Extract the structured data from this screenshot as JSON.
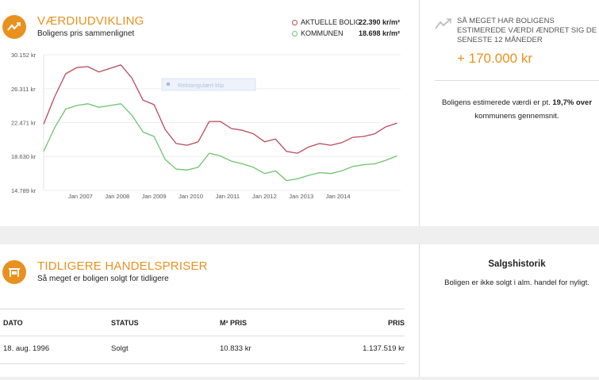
{
  "value_section": {
    "title": "VÆRDIUDVIKLING",
    "subtitle": "Boligens pris sammenlignet",
    "legend": [
      {
        "label": "AKTUELLE BOLIG",
        "value": "22.390 kr/m²",
        "color": "#b84a5a"
      },
      {
        "label": "KOMMUNEN",
        "value": "18.698 kr/m²",
        "color": "#6dc36d"
      }
    ]
  },
  "chart_data": {
    "type": "line",
    "y_tick_labels": [
      "30.152 kr",
      "26.311 kr",
      "22.471 kr",
      "18.630 kr",
      "14.789 kr"
    ],
    "y_ticks": [
      30152,
      26311,
      22471,
      18630,
      14789
    ],
    "x_tick_labels": [
      "Jan 2007",
      "Jan 2008",
      "Jan 2009",
      "Jan 2010",
      "Jan 2011",
      "Jan 2012",
      "Jan 2013",
      "Jan 2014"
    ],
    "x_ticks": [
      2007,
      2008,
      2009,
      2010,
      2011,
      2012,
      2013,
      2014
    ],
    "xlim": [
      2006.0,
      2015.7
    ],
    "ylim": [
      14789,
      30152
    ],
    "tooltip_label": "Rektangulært klip",
    "series": [
      {
        "name": "Aktuelle bolig",
        "color": "#b84a5a",
        "x": [
          2006.0,
          2006.3,
          2006.6,
          2006.9,
          2007.2,
          2007.5,
          2007.8,
          2008.1,
          2008.4,
          2008.7,
          2009.0,
          2009.3,
          2009.6,
          2009.9,
          2010.2,
          2010.5,
          2010.8,
          2011.1,
          2011.4,
          2011.7,
          2012.0,
          2012.3,
          2012.6,
          2012.9,
          2013.2,
          2013.5,
          2013.8,
          2014.1,
          2014.4,
          2014.7,
          2015.0,
          2015.3,
          2015.6
        ],
        "values": [
          22300,
          25400,
          28000,
          28700,
          28800,
          28200,
          28600,
          29000,
          27500,
          25000,
          24500,
          21700,
          20100,
          19900,
          20300,
          22600,
          22600,
          21800,
          21600,
          21200,
          20300,
          20600,
          19200,
          19000,
          19700,
          20100,
          19900,
          20200,
          20800,
          20900,
          21200,
          22000,
          22400
        ]
      },
      {
        "name": "Kommunen",
        "color": "#6dc36d",
        "x": [
          2006.0,
          2006.3,
          2006.6,
          2006.9,
          2007.2,
          2007.5,
          2007.8,
          2008.1,
          2008.4,
          2008.7,
          2009.0,
          2009.3,
          2009.6,
          2009.9,
          2010.2,
          2010.5,
          2010.8,
          2011.1,
          2011.4,
          2011.7,
          2012.0,
          2012.3,
          2012.6,
          2012.9,
          2013.2,
          2013.5,
          2013.8,
          2014.1,
          2014.4,
          2014.7,
          2015.0,
          2015.3,
          2015.6
        ],
        "values": [
          19200,
          21900,
          24000,
          24400,
          24600,
          24200,
          24400,
          24600,
          23300,
          21400,
          20900,
          18300,
          17200,
          17100,
          17400,
          19000,
          18700,
          18100,
          17800,
          17400,
          16700,
          17000,
          15900,
          16100,
          16500,
          16800,
          16700,
          17000,
          17500,
          17700,
          17800,
          18200,
          18700
        ]
      }
    ]
  },
  "right_top": {
    "heading": "SÅ MEGET HAR BOLIGENS ESTIMEREDE VÆRDI ÆNDRET SIG DE SENESTE 12 MÅNEDER",
    "change_value": "+ 170.000 kr",
    "compare_pre": "Boligens estimerede værdi er pt. ",
    "compare_highlight": "19,7% over",
    "compare_post": " kommunens gennemsnit."
  },
  "prices_section": {
    "title": "TIDLIGERE HANDELSPRISER",
    "subtitle": "Så meget er boligen solgt for tidligere",
    "table": {
      "headers": [
        "DATO",
        "STATUS",
        "M² PRIS",
        "PRIS"
      ],
      "rows": [
        [
          "18. aug. 1996",
          "Solgt",
          "10.833 kr",
          "1.137.519 kr"
        ]
      ]
    }
  },
  "sales_history": {
    "title": "Salgshistorik",
    "text": "Boligen er ikke solgt i alm. handel for nyligt."
  },
  "colors": {
    "accent": "#e8911f",
    "divider": "#dcdcdc",
    "gap": "#efefef"
  }
}
